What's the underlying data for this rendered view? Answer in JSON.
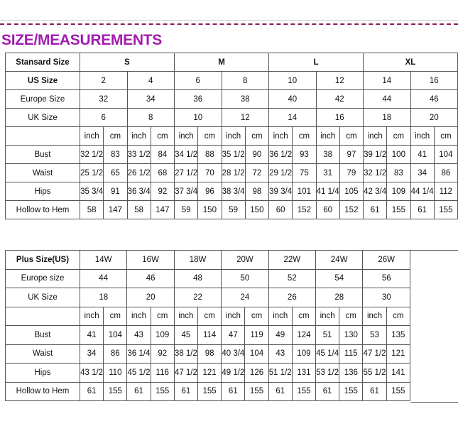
{
  "title": "SIZE/MEASUREMENTS",
  "standard": {
    "header_label": "Stansard Size",
    "groups": [
      "S",
      "M",
      "L",
      "XL"
    ],
    "rows": [
      {
        "label": "US Size",
        "values": [
          "2",
          "4",
          "6",
          "8",
          "10",
          "12",
          "14",
          "16"
        ]
      },
      {
        "label": "Europe Size",
        "values": [
          "32",
          "34",
          "36",
          "38",
          "40",
          "42",
          "44",
          "46"
        ]
      },
      {
        "label": "UK Size",
        "values": [
          "6",
          "8",
          "10",
          "12",
          "14",
          "16",
          "18",
          "20"
        ]
      }
    ],
    "units": [
      "inch",
      "cm"
    ],
    "measurements": [
      {
        "label": "Bust",
        "values": [
          "32 1/2",
          "83",
          "33 1/2",
          "84",
          "34 1/2",
          "88",
          "35 1/2",
          "90",
          "36 1/2",
          "93",
          "38",
          "97",
          "39 1/2",
          "100",
          "41",
          "104"
        ]
      },
      {
        "label": "Waist",
        "values": [
          "25 1/2",
          "65",
          "26 1/2",
          "68",
          "27 1/2",
          "70",
          "28 1/2",
          "72",
          "29 1/2",
          "75",
          "31",
          "79",
          "32 1/2",
          "83",
          "34",
          "86"
        ]
      },
      {
        "label": "Hips",
        "values": [
          "35 3/4",
          "91",
          "36 3/4",
          "92",
          "37 3/4",
          "96",
          "38 3/4",
          "98",
          "39 3/4",
          "101",
          "41 1/4",
          "105",
          "42 3/4",
          "109",
          "44 1/4",
          "112"
        ]
      },
      {
        "label": "Hollow to Hem",
        "values": [
          "58",
          "147",
          "58",
          "147",
          "59",
          "150",
          "59",
          "150",
          "60",
          "152",
          "60",
          "152",
          "61",
          "155",
          "61",
          "155"
        ]
      }
    ]
  },
  "plus": {
    "header_label": "Plus Size(US)",
    "sizes": [
      "14W",
      "16W",
      "18W",
      "20W",
      "22W",
      "24W",
      "26W"
    ],
    "rows": [
      {
        "label": "Europe size",
        "values": [
          "44",
          "46",
          "48",
          "50",
          "52",
          "54",
          "56"
        ]
      },
      {
        "label": "UK Size",
        "values": [
          "18",
          "20",
          "22",
          "24",
          "26",
          "28",
          "30"
        ]
      }
    ],
    "units": [
      "inch",
      "cm"
    ],
    "measurements": [
      {
        "label": "Bust",
        "values": [
          "41",
          "104",
          "43",
          "109",
          "45",
          "114",
          "47",
          "119",
          "49",
          "124",
          "51",
          "130",
          "53",
          "135"
        ]
      },
      {
        "label": "Waist",
        "values": [
          "34",
          "86",
          "36 1/4",
          "92",
          "38 1/2",
          "98",
          "40 3/4",
          "104",
          "43",
          "109",
          "45 1/4",
          "115",
          "47 1/2",
          "121"
        ]
      },
      {
        "label": "Hips",
        "values": [
          "43 1/2",
          "110",
          "45 1/2",
          "116",
          "47 1/2",
          "121",
          "49 1/2",
          "126",
          "51 1/2",
          "131",
          "53 1/2",
          "136",
          "55 1/2",
          "141"
        ]
      },
      {
        "label": "Hollow to Hem",
        "values": [
          "61",
          "155",
          "61",
          "155",
          "61",
          "155",
          "61",
          "155",
          "61",
          "155",
          "61",
          "155",
          "61",
          "155"
        ]
      }
    ]
  },
  "colors": {
    "title": "#a21caf",
    "dash": "#8b1a5a",
    "border": "#555555"
  }
}
